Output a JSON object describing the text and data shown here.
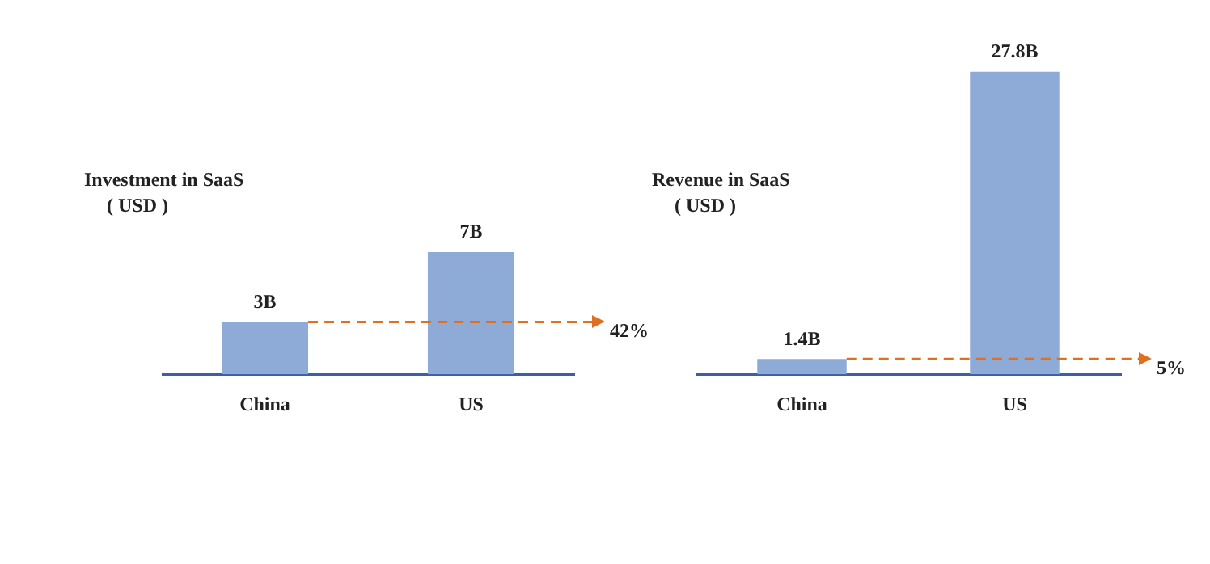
{
  "chart_data": [
    {
      "type": "bar",
      "title": "Investment in SaaS",
      "subtitle": "( USD )",
      "categories": [
        "China",
        "US"
      ],
      "values": [
        3,
        7
      ],
      "value_labels": [
        "3B",
        "7B"
      ],
      "color": "#8eaad6",
      "annotations": [
        "42%"
      ],
      "ref_lines": [
        {
          "axis": "y",
          "value": 3,
          "color": "#e07020",
          "line_style": "dashed"
        }
      ]
    },
    {
      "type": "bar",
      "title": "Revenue in SaaS",
      "subtitle": "( USD )",
      "categories": [
        "China",
        "US"
      ],
      "values": [
        1.4,
        27.8
      ],
      "value_labels": [
        "1.4B",
        "27.8B"
      ],
      "color": "#8eaad6",
      "annotations": [
        "5%"
      ],
      "ref_lines": [
        {
          "axis": "y",
          "value": 1.4,
          "color": "#e07020",
          "line_style": "dashed"
        }
      ]
    }
  ]
}
